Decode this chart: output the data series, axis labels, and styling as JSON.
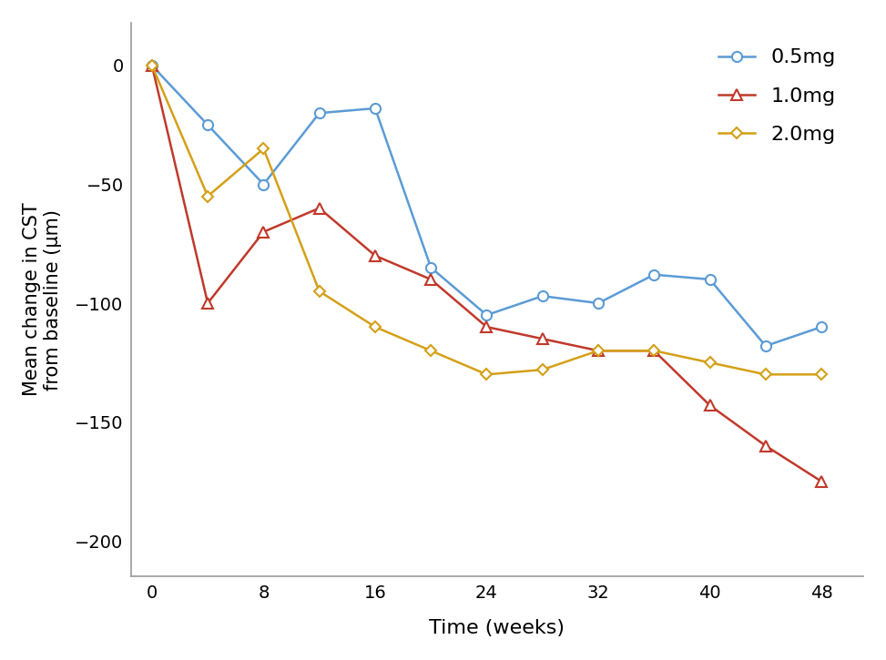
{
  "blue_x": [
    0,
    4,
    8,
    12,
    16,
    20,
    24,
    28,
    32,
    36,
    40,
    44,
    48
  ],
  "blue_y": [
    0,
    -25,
    -50,
    -20,
    -18,
    -85,
    -105,
    -97,
    -100,
    -88,
    -90,
    -118,
    -110
  ],
  "red_x": [
    0,
    4,
    8,
    12,
    16,
    20,
    24,
    28,
    32,
    36,
    40,
    44,
    48
  ],
  "red_y": [
    0,
    -100,
    -70,
    -60,
    -80,
    -90,
    -110,
    -115,
    -120,
    -120,
    -143,
    -160,
    -175
  ],
  "gold_x": [
    0,
    4,
    8,
    12,
    16,
    20,
    24,
    28,
    32,
    36,
    40,
    44,
    48
  ],
  "gold_y": [
    0,
    -55,
    -35,
    -95,
    -110,
    -120,
    -130,
    -128,
    -120,
    -120,
    -125,
    -130,
    -130
  ],
  "xlabel": "Time (weeks)",
  "ylabel": "Mean change in CST\nfrom baseline (μm)",
  "ylim": [
    -215,
    18
  ],
  "xlim": [
    -1.5,
    51
  ],
  "xticks": [
    0,
    8,
    16,
    24,
    32,
    40,
    48
  ],
  "yticks": [
    0,
    -50,
    -100,
    -150,
    -200
  ],
  "blue_color": "#5B9BD5",
  "red_color": "#C0392B",
  "gold_color": "#D4A017",
  "legend_labels": [
    "0.5mg",
    "1.0mg",
    "2.0mg"
  ],
  "background_color": "#ffffff",
  "spine_color": "#999999"
}
